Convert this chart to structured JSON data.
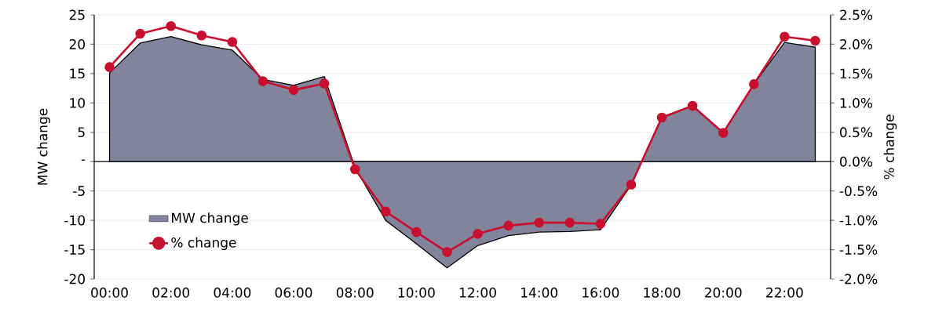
{
  "chart_data": {
    "type": "area",
    "categories": [
      "00:00",
      null,
      "02:00",
      null,
      "04:00",
      null,
      "06:00",
      null,
      "08:00",
      null,
      "10:00",
      null,
      "12:00",
      null,
      "14:00",
      null,
      "16:00",
      null,
      "18:00",
      null,
      "20:00",
      null,
      "22:00",
      null
    ],
    "series": [
      {
        "name": "MW change",
        "color": "#81849b",
        "values": [
          15.1,
          20.2,
          21.3,
          19.9,
          19.0,
          14.0,
          13.0,
          14.5,
          -1.0,
          -10.0,
          -14.0,
          -18.1,
          -14.3,
          -12.6,
          -12.0,
          -11.9,
          -11.6,
          -4.0,
          7.6,
          9.5,
          4.9,
          13.2,
          20.3,
          19.5
        ]
      },
      {
        "name": "% change",
        "type": "line",
        "axis": "y2",
        "color": "#c8102e",
        "marker": "circle",
        "values": [
          1.61,
          2.18,
          2.31,
          2.15,
          2.04,
          1.37,
          1.22,
          1.33,
          -0.13,
          -0.85,
          -1.2,
          -1.54,
          -1.23,
          -1.09,
          -1.04,
          -1.04,
          -1.06,
          -0.39,
          0.75,
          0.95,
          0.49,
          1.32,
          2.13,
          2.06
        ]
      }
    ],
    "ylabel": "MW change",
    "y2label": "% change",
    "ylim": [
      -20,
      25
    ],
    "yticks": [
      -20,
      -15,
      -10,
      -5,
      {
        "value": 0,
        "label": "-"
      },
      5,
      10,
      15,
      20,
      25
    ],
    "y2lim": [
      -2.0,
      2.5
    ],
    "y2ticks": [
      {
        "value": -2.0,
        "label": "-2.0%"
      },
      {
        "value": -1.5,
        "label": "-1.5%"
      },
      {
        "value": -1.0,
        "label": "-1.0%"
      },
      {
        "value": -0.5,
        "label": "-0.5%"
      },
      {
        "value": 0.0,
        "label": "0.0%"
      },
      {
        "value": 0.5,
        "label": "0.5%"
      },
      {
        "value": 1.0,
        "label": "1.0%"
      },
      {
        "value": 1.5,
        "label": "1.5%"
      },
      {
        "value": 2.0,
        "label": "2.0%"
      },
      {
        "value": 2.5,
        "label": "2.5%"
      }
    ],
    "grid": "y",
    "legend": "bottom left",
    "line_style": "solid"
  }
}
